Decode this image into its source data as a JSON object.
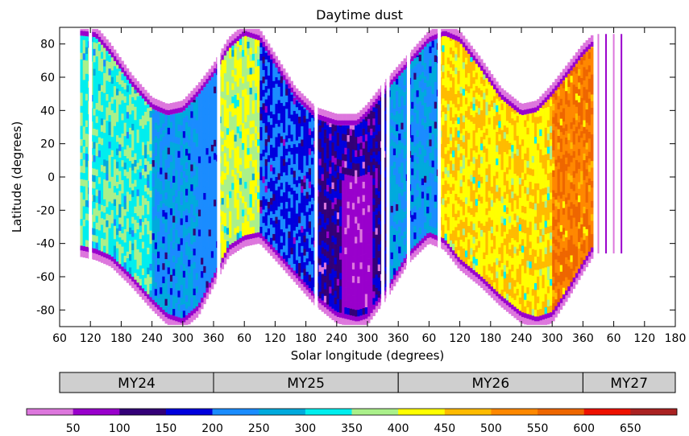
{
  "chart_data": {
    "type": "heatmap",
    "title": "Daytime dust",
    "xlabel": "Solar longitude (degrees)",
    "ylabel": "Latitude (degrees)",
    "x_ticks": [
      "60",
      "120",
      "180",
      "240",
      "300",
      "360",
      "60",
      "120",
      "180",
      "240",
      "300",
      "360",
      "60",
      "120",
      "180",
      "240",
      "300",
      "360",
      "60",
      "120",
      "180"
    ],
    "y_ticks": [
      "80",
      "60",
      "40",
      "20",
      "0",
      "-20",
      "-40",
      "-60",
      "-80"
    ],
    "ylim": [
      -90,
      90
    ],
    "x_axis_continuous_deg": [
      60,
      1260
    ],
    "mars_years": [
      {
        "label": "MY24",
        "start": 60,
        "end": 360
      },
      {
        "label": "MY25",
        "start": 360,
        "end": 720
      },
      {
        "label": "MY26",
        "start": 720,
        "end": 1080
      },
      {
        "label": "MY27",
        "start": 1080,
        "end": 1260
      }
    ],
    "colorbar": {
      "tick_labels": [
        "50",
        "100",
        "150",
        "200",
        "250",
        "300",
        "350",
        "400",
        "450",
        "500",
        "550",
        "600",
        "650"
      ],
      "bins": [
        {
          "range": "<50",
          "color": "#dd77dd"
        },
        {
          "range": "50-100",
          "color": "#9900cc"
        },
        {
          "range": "100-150",
          "color": "#330077"
        },
        {
          "range": "150-200",
          "color": "#0000dd"
        },
        {
          "range": "200-250",
          "color": "#1a8cff"
        },
        {
          "range": "250-300",
          "color": "#00aadd"
        },
        {
          "range": "300-350",
          "color": "#00eeee"
        },
        {
          "range": "350-400",
          "color": "#aaf08a"
        },
        {
          "range": "400-450",
          "color": "#ffff00"
        },
        {
          "range": "450-500",
          "color": "#ffbb00"
        },
        {
          "range": "500-550",
          "color": "#ff8800"
        },
        {
          "range": "550-600",
          "color": "#ee6600"
        },
        {
          "range": "600-650",
          "color": "#ee1100"
        },
        {
          "range": ">650",
          "color": "#aa2222"
        }
      ]
    },
    "coverage_envelope": [
      {
        "ls": 100,
        "north": 88,
        "south": -44
      },
      {
        "ls": 130,
        "north": 87,
        "south": -46
      },
      {
        "ls": 160,
        "north": 76,
        "south": -50
      },
      {
        "ls": 200,
        "north": 58,
        "south": -62
      },
      {
        "ls": 240,
        "north": 44,
        "south": -76
      },
      {
        "ls": 270,
        "north": 40,
        "south": -85
      },
      {
        "ls": 300,
        "north": 42,
        "south": -88
      },
      {
        "ls": 330,
        "north": 52,
        "south": -80
      },
      {
        "ls": 360,
        "north": 64,
        "south": -62
      },
      {
        "ls": 390,
        "north": 80,
        "south": -44
      },
      {
        "ls": 420,
        "north": 88,
        "south": -38
      },
      {
        "ls": 450,
        "north": 85,
        "south": -36
      },
      {
        "ls": 480,
        "north": 70,
        "south": -46
      },
      {
        "ls": 520,
        "north": 50,
        "south": -60
      },
      {
        "ls": 560,
        "north": 38,
        "south": -74
      },
      {
        "ls": 600,
        "north": 34,
        "south": -84
      },
      {
        "ls": 640,
        "north": 34,
        "south": -87
      },
      {
        "ls": 660,
        "north": 40,
        "south": -85
      },
      {
        "ls": 700,
        "north": 56,
        "south": -68
      },
      {
        "ls": 740,
        "north": 70,
        "south": -48
      },
      {
        "ls": 780,
        "north": 84,
        "south": -36
      },
      {
        "ls": 810,
        "north": 88,
        "south": -40
      },
      {
        "ls": 840,
        "north": 84,
        "south": -52
      },
      {
        "ls": 880,
        "north": 68,
        "south": -62
      },
      {
        "ls": 920,
        "north": 50,
        "south": -74
      },
      {
        "ls": 960,
        "north": 40,
        "south": -84
      },
      {
        "ls": 990,
        "north": 42,
        "south": -87
      },
      {
        "ls": 1020,
        "north": 52,
        "south": -84
      },
      {
        "ls": 1050,
        "north": 64,
        "south": -70
      },
      {
        "ls": 1080,
        "north": 76,
        "south": -54
      },
      {
        "ls": 1100,
        "north": 82,
        "south": -44
      }
    ],
    "regions": [
      {
        "ls_start": 100,
        "ls_end": 240,
        "dominant_range": "300-400"
      },
      {
        "ls_start": 240,
        "ls_end": 330,
        "dominant_range": "200-300"
      },
      {
        "ls_start": 370,
        "ls_end": 450,
        "dominant_range": "350-450"
      },
      {
        "ls_start": 450,
        "ls_end": 560,
        "dominant_range": "150-250"
      },
      {
        "ls_start": 560,
        "ls_end": 700,
        "dominant_range": "100-200"
      },
      {
        "ls_start": 610,
        "ls_end": 670,
        "lat_range": [
          -80,
          0
        ],
        "dominant_range": "<100"
      },
      {
        "ls_start": 700,
        "ls_end": 800,
        "dominant_range": "200-300"
      },
      {
        "ls_start": 800,
        "ls_end": 1020,
        "dominant_range": "400-500"
      },
      {
        "ls_start": 1020,
        "ls_end": 1100,
        "dominant_range": "500-600"
      }
    ],
    "sparse_columns_ls": [
      1110,
      1125,
      1140,
      1155
    ],
    "data_gaps_ls": [
      120,
      370,
      560,
      690,
      700,
      740,
      800
    ]
  }
}
